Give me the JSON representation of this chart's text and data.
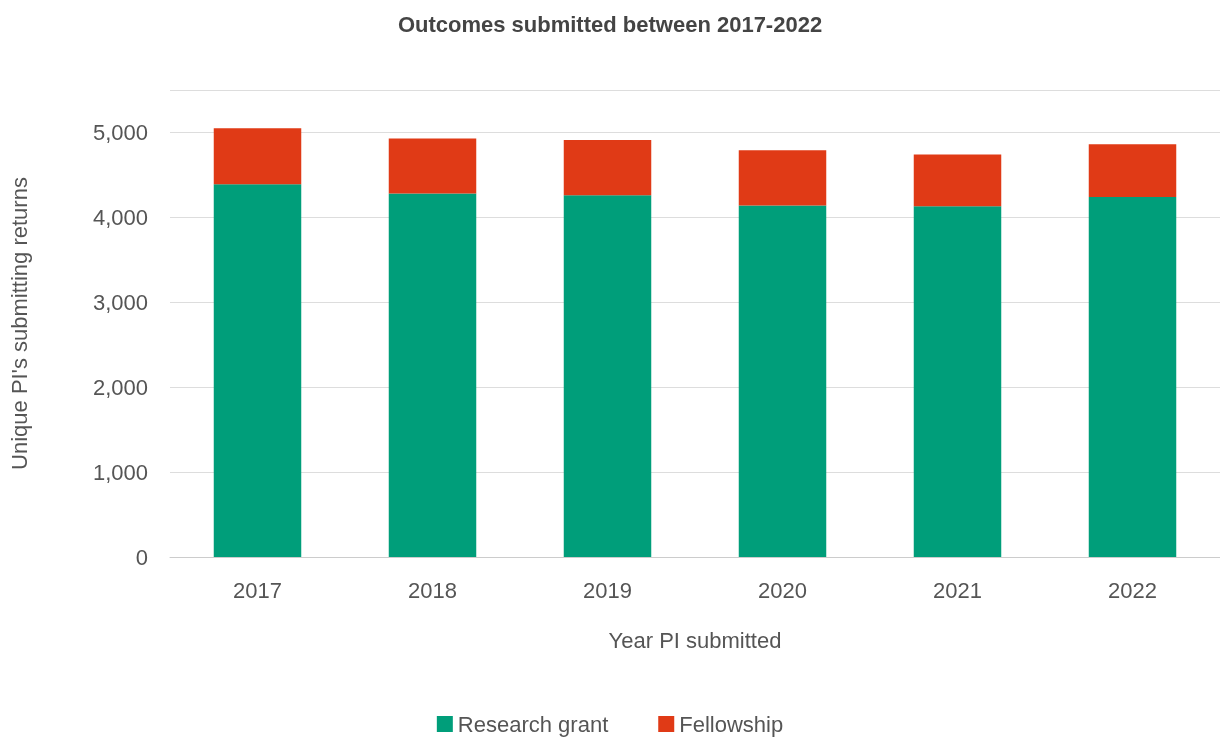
{
  "chart_data": {
    "type": "bar",
    "title": "Outcomes submitted between 2017-2022",
    "xlabel": "Year PI submitted",
    "ylabel": "Unique PI's submitting returns",
    "categories": [
      "2017",
      "2018",
      "2019",
      "2020",
      "2021",
      "2022"
    ],
    "series": [
      {
        "name": "Research grant",
        "color": "#009e7a",
        "values": [
          4390,
          4280,
          4260,
          4140,
          4130,
          4240
        ]
      },
      {
        "name": "Fellowship",
        "color": "#e03a16",
        "values": [
          660,
          650,
          650,
          650,
          610,
          620
        ]
      }
    ],
    "stacked": true,
    "ylim": [
      0,
      5500
    ],
    "yticks": [
      {
        "value": 0,
        "label": "0"
      },
      {
        "value": 1000,
        "label": "1,000"
      },
      {
        "value": 2000,
        "label": "2,000"
      },
      {
        "value": 3000,
        "label": "3,000"
      },
      {
        "value": 4000,
        "label": "4,000"
      },
      {
        "value": 5000,
        "label": "5,000"
      },
      {
        "value": 5500,
        "label": null
      }
    ],
    "grid": "y",
    "legend": "bottom"
  }
}
